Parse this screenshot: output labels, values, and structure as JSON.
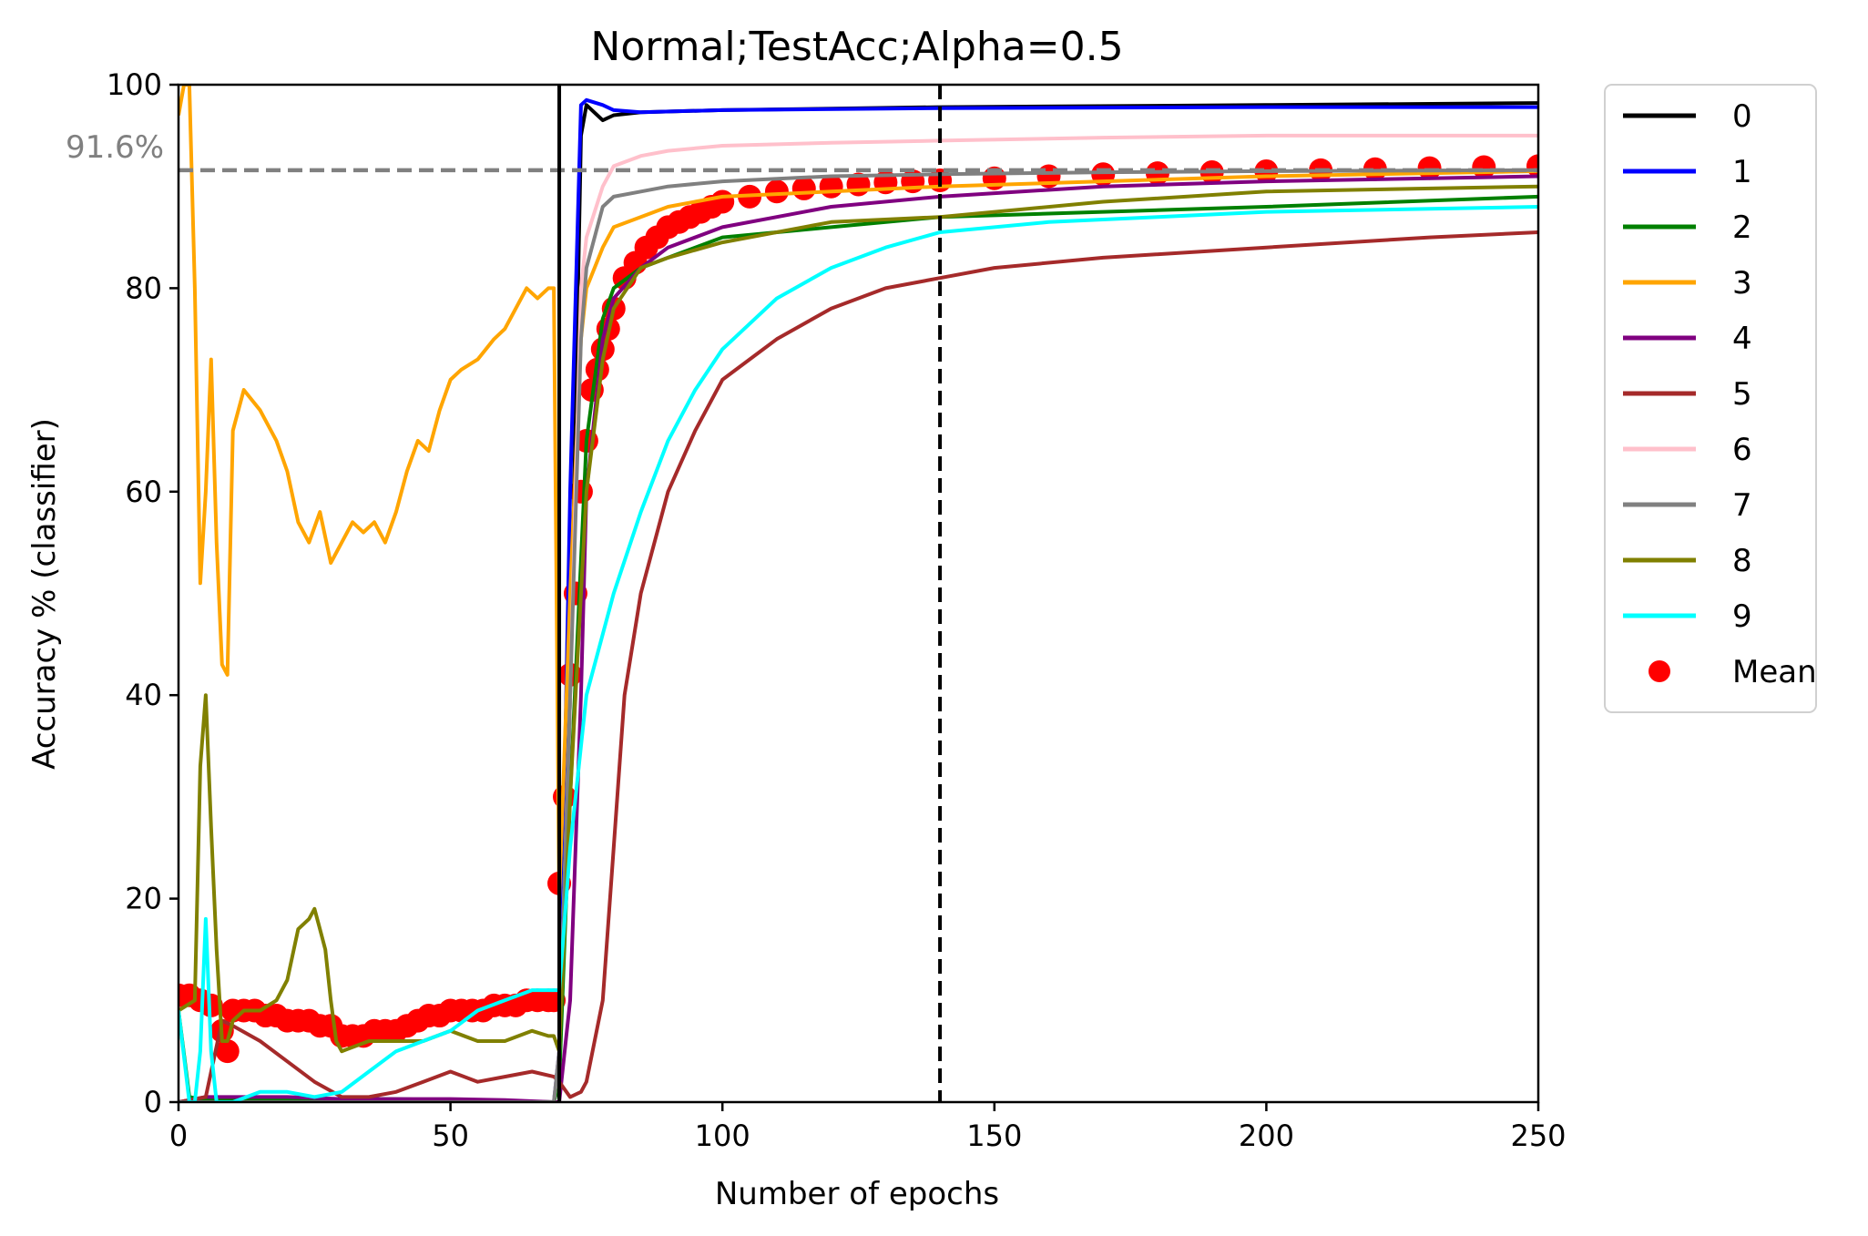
{
  "chart_data": {
    "type": "line",
    "title": "Normal;TestAcc;Alpha=0.5",
    "xlabel": "Number of epochs",
    "ylabel": "Accuracy % (classifier)",
    "xlim": [
      0,
      250
    ],
    "ylim": [
      0,
      100
    ],
    "xticks": [
      0,
      50,
      100,
      150,
      200,
      250
    ],
    "yticks": [
      0,
      20,
      40,
      60,
      80,
      100
    ],
    "grid": false,
    "legend_position": "outside-right",
    "reference_line": {
      "y": 91.6,
      "label": "91.6%",
      "color": "#808080",
      "style": "dashed"
    },
    "vertical_lines": [
      {
        "x": 70,
        "color": "#000000",
        "style": "solid"
      },
      {
        "x": 140,
        "color": "#000000",
        "style": "dashed"
      }
    ],
    "series": [
      {
        "name": "0",
        "color": "#000000",
        "x": [
          0,
          5,
          10,
          20,
          30,
          40,
          50,
          60,
          69,
          70,
          72,
          74,
          75,
          78,
          80,
          85,
          100,
          140,
          200,
          250
        ],
        "y": [
          0,
          0,
          0,
          0,
          0,
          0,
          0,
          0,
          0,
          2,
          40,
          95,
          98,
          96.5,
          97,
          97.3,
          97.5,
          97.8,
          98,
          98.2
        ]
      },
      {
        "name": "1",
        "color": "#0000ff",
        "x": [
          0,
          5,
          10,
          20,
          30,
          40,
          50,
          60,
          69,
          70,
          72,
          74,
          75,
          78,
          80,
          85,
          100,
          140,
          200,
          250
        ],
        "y": [
          0,
          0,
          0,
          0,
          0,
          0,
          0,
          0,
          0,
          5,
          60,
          98,
          98.5,
          98,
          97.5,
          97.3,
          97.5,
          97.7,
          97.8,
          97.8
        ]
      },
      {
        "name": "2",
        "color": "#008000",
        "x": [
          0,
          2,
          5,
          10,
          20,
          30,
          40,
          50,
          60,
          69,
          70,
          72,
          75,
          78,
          80,
          85,
          90,
          100,
          120,
          140,
          170,
          200,
          250
        ],
        "y": [
          9,
          0.5,
          0.2,
          0.2,
          0.3,
          0.3,
          0.3,
          0.2,
          0.1,
          0,
          2,
          30,
          65,
          77,
          80,
          82,
          83,
          85,
          86,
          87,
          87.5,
          88,
          89
        ]
      },
      {
        "name": "3",
        "color": "#ffa500",
        "x": [
          0,
          1,
          2,
          3,
          4,
          5,
          6,
          7,
          8,
          9,
          10,
          12,
          15,
          18,
          20,
          22,
          24,
          26,
          28,
          30,
          32,
          34,
          36,
          38,
          40,
          42,
          44,
          46,
          48,
          50,
          52,
          55,
          58,
          60,
          62,
          64,
          66,
          68,
          69,
          70,
          72,
          74,
          75,
          78,
          80,
          85,
          90,
          100,
          120,
          140,
          170,
          200,
          250
        ],
        "y": [
          97,
          100,
          100,
          80,
          51,
          60,
          73,
          55,
          43,
          42,
          66,
          70,
          68,
          65,
          62,
          57,
          55,
          58,
          53,
          55,
          57,
          56,
          57,
          55,
          58,
          62,
          65,
          64,
          68,
          71,
          72,
          73,
          75,
          76,
          78,
          80,
          79,
          80,
          80,
          20,
          50,
          75,
          80,
          84,
          86,
          87,
          88,
          89,
          89.5,
          90,
          90.5,
          91,
          91.5
        ]
      },
      {
        "name": "4",
        "color": "#800080",
        "x": [
          0,
          5,
          10,
          20,
          30,
          40,
          50,
          60,
          69,
          70,
          72,
          74,
          75,
          78,
          80,
          85,
          90,
          100,
          120,
          140,
          170,
          200,
          250
        ],
        "y": [
          0,
          0.5,
          0.5,
          0.5,
          0.3,
          0.3,
          0.3,
          0.2,
          0,
          0,
          10,
          40,
          60,
          75,
          79,
          82,
          84,
          86,
          88,
          89,
          90,
          90.5,
          91
        ]
      },
      {
        "name": "5",
        "color": "#a52a2a",
        "x": [
          0,
          5,
          8,
          10,
          15,
          20,
          25,
          30,
          35,
          40,
          45,
          50,
          55,
          60,
          65,
          69,
          70,
          72,
          74,
          75,
          78,
          80,
          82,
          85,
          90,
          95,
          100,
          110,
          120,
          130,
          140,
          150,
          170,
          200,
          230,
          250
        ],
        "y": [
          0,
          0.5,
          8,
          7.5,
          6,
          4,
          2,
          0.5,
          0.5,
          1,
          2,
          3,
          2,
          2.5,
          3,
          2.5,
          2,
          0.5,
          1,
          2,
          10,
          25,
          40,
          50,
          60,
          66,
          71,
          75,
          78,
          80,
          81,
          82,
          83,
          84,
          85,
          85.5
        ]
      },
      {
        "name": "6",
        "color": "#ffc0cb",
        "x": [
          0,
          5,
          10,
          20,
          30,
          40,
          50,
          60,
          69,
          70,
          72,
          74,
          75,
          78,
          80,
          85,
          90,
          100,
          120,
          140,
          170,
          200,
          250
        ],
        "y": [
          0,
          0,
          0,
          0,
          0,
          0,
          0,
          0,
          0,
          5,
          40,
          80,
          85,
          90,
          92,
          93,
          93.5,
          94,
          94.3,
          94.5,
          94.8,
          95,
          95
        ]
      },
      {
        "name": "7",
        "color": "#808080",
        "x": [
          0,
          5,
          10,
          20,
          30,
          40,
          50,
          60,
          69,
          70,
          72,
          74,
          75,
          78,
          80,
          85,
          90,
          100,
          120,
          140,
          170,
          200,
          250
        ],
        "y": [
          0,
          0,
          0,
          0,
          0,
          0,
          0,
          0,
          0,
          5,
          40,
          75,
          82,
          88,
          89,
          89.5,
          90,
          90.5,
          91,
          91.2,
          91.4,
          91.5,
          91.6
        ]
      },
      {
        "name": "8",
        "color": "#808000",
        "x": [
          0,
          3,
          4,
          5,
          6,
          7,
          8,
          9,
          10,
          12,
          15,
          18,
          20,
          22,
          24,
          25,
          26,
          27,
          28,
          29,
          30,
          35,
          40,
          45,
          50,
          55,
          60,
          65,
          68,
          69,
          70,
          72,
          75,
          78,
          80,
          85,
          90,
          100,
          120,
          140,
          170,
          200,
          250
        ],
        "y": [
          9,
          10,
          33,
          40,
          27,
          15,
          6,
          6,
          8,
          9,
          9,
          10,
          12,
          17,
          18,
          19,
          17,
          15,
          10,
          6,
          5,
          6,
          6,
          6,
          7,
          6,
          6,
          7,
          6.5,
          6.5,
          5,
          30,
          60,
          73,
          78,
          82,
          83,
          84.5,
          86.5,
          87,
          88.5,
          89.5,
          90
        ]
      },
      {
        "name": "9",
        "color": "#00ffff",
        "x": [
          0,
          2,
          3,
          4,
          5,
          6,
          7,
          8,
          10,
          15,
          20,
          25,
          30,
          35,
          40,
          45,
          50,
          55,
          60,
          65,
          68,
          69,
          70,
          72,
          75,
          80,
          85,
          90,
          95,
          100,
          110,
          120,
          130,
          140,
          160,
          180,
          200,
          230,
          250
        ],
        "y": [
          9,
          0,
          0,
          5,
          18,
          5,
          0,
          0,
          0,
          1,
          1,
          0.5,
          1,
          3,
          5,
          6,
          7,
          9,
          10,
          11,
          11,
          11,
          11,
          25,
          40,
          50,
          58,
          65,
          70,
          74,
          79,
          82,
          84,
          85.5,
          86.5,
          87,
          87.5,
          87.8,
          88
        ]
      },
      {
        "name": "Mean",
        "color": "#ff0000",
        "marker": "circle",
        "x": [
          0,
          2,
          4,
          6,
          8,
          9,
          10,
          12,
          14,
          16,
          18,
          20,
          22,
          24,
          26,
          28,
          30,
          32,
          34,
          36,
          38,
          40,
          42,
          44,
          46,
          48,
          50,
          52,
          54,
          56,
          58,
          60,
          62,
          64,
          66,
          68,
          69,
          70,
          71,
          72,
          73,
          74,
          75,
          76,
          77,
          78,
          79,
          80,
          82,
          84,
          86,
          88,
          90,
          92,
          94,
          96,
          98,
          100,
          105,
          110,
          115,
          120,
          125,
          130,
          135,
          140,
          150,
          160,
          170,
          180,
          190,
          200,
          210,
          220,
          230,
          240,
          250
        ],
        "y": [
          10.5,
          10.5,
          10,
          9.5,
          7,
          5,
          9,
          9,
          9,
          8.5,
          8.5,
          8,
          8,
          8,
          7.5,
          7.5,
          6.5,
          6.5,
          6.5,
          7,
          7,
          7,
          7.5,
          8,
          8.5,
          8.5,
          9,
          9,
          9,
          9,
          9.5,
          9.5,
          9.5,
          10,
          10,
          10,
          10,
          21.5,
          30,
          42,
          50,
          60,
          65,
          70,
          72,
          74,
          76,
          78,
          81,
          82.5,
          84,
          85,
          86,
          86.5,
          87,
          87.5,
          88,
          88.5,
          89,
          89.5,
          89.8,
          90,
          90.2,
          90.4,
          90.5,
          90.6,
          90.8,
          91,
          91.2,
          91.3,
          91.4,
          91.5,
          91.6,
          91.7,
          91.8,
          91.9,
          92
        ]
      }
    ]
  }
}
